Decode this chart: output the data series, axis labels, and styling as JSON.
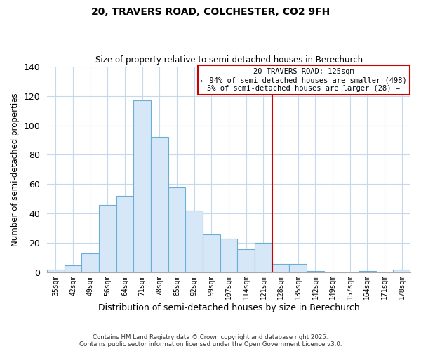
{
  "title1": "20, TRAVERS ROAD, COLCHESTER, CO2 9FH",
  "title2": "Size of property relative to semi-detached houses in Berechurch",
  "xlabel": "Distribution of semi-detached houses by size in Berechurch",
  "ylabel": "Number of semi-detached properties",
  "bar_labels": [
    "35sqm",
    "42sqm",
    "49sqm",
    "56sqm",
    "64sqm",
    "71sqm",
    "78sqm",
    "85sqm",
    "92sqm",
    "99sqm",
    "107sqm",
    "114sqm",
    "121sqm",
    "128sqm",
    "135sqm",
    "142sqm",
    "149sqm",
    "157sqm",
    "164sqm",
    "171sqm",
    "178sqm"
  ],
  "bar_values": [
    2,
    5,
    13,
    46,
    52,
    117,
    92,
    58,
    42,
    26,
    23,
    16,
    20,
    6,
    6,
    1,
    0,
    0,
    1,
    0,
    2
  ],
  "bar_color": "#d6e8f7",
  "bar_edge_color": "#6aaed6",
  "ylim": [
    0,
    140
  ],
  "yticks": [
    0,
    20,
    40,
    60,
    80,
    100,
    120,
    140
  ],
  "vline_color": "#cc0000",
  "annotation_title": "20 TRAVERS ROAD: 125sqm",
  "annotation_line1": "← 94% of semi-detached houses are smaller (498)",
  "annotation_line2": "5% of semi-detached houses are larger (28) →",
  "annotation_box_color": "#ffffff",
  "annotation_box_edge": "#cc0000",
  "footnote1": "Contains HM Land Registry data © Crown copyright and database right 2025.",
  "footnote2": "Contains public sector information licensed under the Open Government Licence v3.0.",
  "bg_color": "#ffffff",
  "grid_color": "#c8d8ec"
}
